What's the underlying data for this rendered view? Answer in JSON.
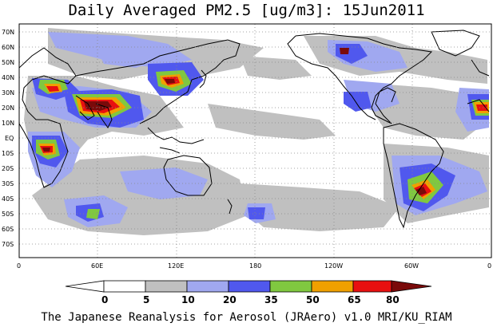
{
  "title": "Daily Averaged PM2.5 [ug/m3]: 15Jun2011",
  "footer": "The Japanese Reanalysis for Aerosol (JRAero) v1.0 MRI/KU_RIAM",
  "lat_labels": [
    "70N",
    "60N",
    "50N",
    "40N",
    "30N",
    "20N",
    "10N",
    "EQ",
    "10S",
    "20S",
    "30S",
    "40S",
    "50S",
    "60S",
    "70S"
  ],
  "lon_labels": [
    "0",
    "60E",
    "120E",
    "180",
    "120W",
    "60W",
    "0"
  ],
  "colorbar": {
    "ticks": [
      "0",
      "5",
      "10",
      "20",
      "35",
      "50",
      "65",
      "80"
    ],
    "colors": [
      "#ffffff",
      "#c0c0c0",
      "#a0a8f0",
      "#5058ee",
      "#80c840",
      "#f0a000",
      "#e81010",
      "#7a0a0a"
    ],
    "arrow_left_color": "#ffffff",
    "arrow_right_color": "#7a0a0a"
  },
  "map": {
    "ocean_color": "#ffffff",
    "coast_color": "#000000",
    "grid_color": "#888888"
  }
}
